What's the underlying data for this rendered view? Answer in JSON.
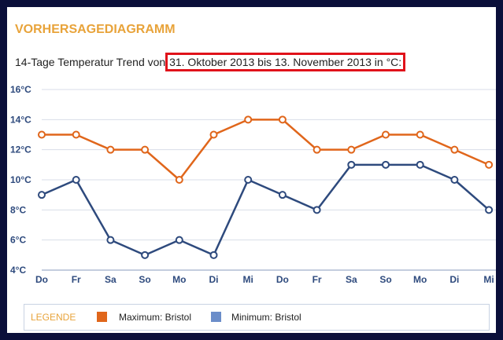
{
  "heading": "VORHERSAGEDIAGRAMM",
  "subtitle": {
    "prefix": "14-Tage Temperatur Trend von",
    "highlight": "31. Oktober 2013 bis 13. November 2013 in °C:"
  },
  "legend": {
    "title": "LEGENDE",
    "max_label": "Maximum: Bristol",
    "min_label": "Minimum: Bristol"
  },
  "colors": {
    "max": "#e0661b",
    "min": "#2e4a7d",
    "max_legend": "#e0661b",
    "min_legend": "#6b8dc9",
    "grid": "#d8dde8",
    "axis_text": "#2e4a7d"
  },
  "chart_data": {
    "type": "line",
    "categories": [
      "Do",
      "Fr",
      "Sa",
      "So",
      "Mo",
      "Di",
      "Mi",
      "Do",
      "Fr",
      "Sa",
      "So",
      "Mo",
      "Di",
      "Mi"
    ],
    "series": [
      {
        "name": "Maximum: Bristol",
        "values": [
          13,
          13,
          12,
          12,
          10,
          13,
          14,
          14,
          12,
          12,
          13,
          13,
          12,
          11
        ]
      },
      {
        "name": "Minimum: Bristol",
        "values": [
          9,
          10,
          6,
          5,
          6,
          5,
          10,
          9,
          8,
          11,
          11,
          11,
          10,
          8
        ]
      }
    ],
    "ylim": [
      4,
      16
    ],
    "yticks": [
      "4°C",
      "6°C",
      "8°C",
      "10°C",
      "12°C",
      "14°C",
      "16°C"
    ],
    "ytick_values": [
      4,
      6,
      8,
      10,
      12,
      14,
      16
    ],
    "grid": true,
    "legend_position": "bottom"
  }
}
